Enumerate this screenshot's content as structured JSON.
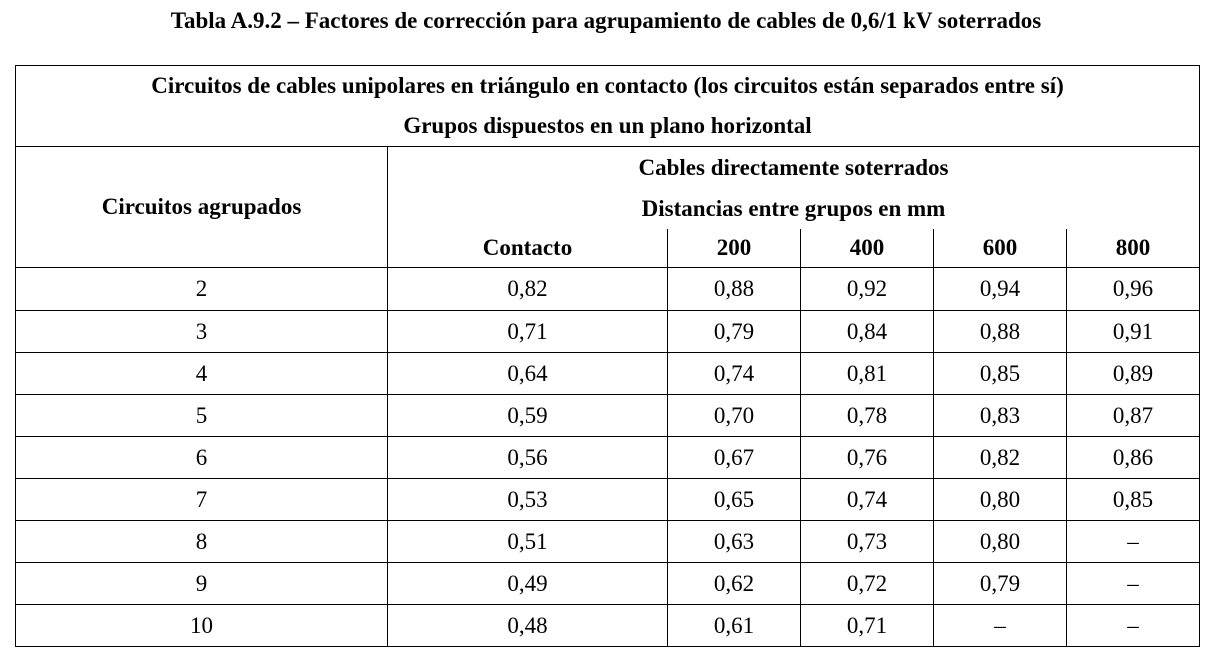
{
  "title": "Tabla A.9.2 – Factores de corrección para agrupamiento de cables de 0,6/1 kV soterrados",
  "header": {
    "line1": "Circuitos de cables unipolares en triángulo en contacto (los circuitos están separados entre sí)",
    "line2": "Grupos dispuestos en un plano horizontal",
    "group_line1": "Cables directamente soterrados",
    "group_line2": "Distancias entre grupos en mm",
    "col_circuits": "Circuitos agrupados",
    "columns": [
      "Contacto",
      "200",
      "400",
      "600",
      "800"
    ]
  },
  "rows": [
    {
      "circuits": "2",
      "values": [
        "0,82",
        "0,88",
        "0,92",
        "0,94",
        "0,96"
      ]
    },
    {
      "circuits": "3",
      "values": [
        "0,71",
        "0,79",
        "0,84",
        "0,88",
        "0,91"
      ]
    },
    {
      "circuits": "4",
      "values": [
        "0,64",
        "0,74",
        "0,81",
        "0,85",
        "0,89"
      ]
    },
    {
      "circuits": "5",
      "values": [
        "0,59",
        "0,70",
        "0,78",
        "0,83",
        "0,87"
      ]
    },
    {
      "circuits": "6",
      "values": [
        "0,56",
        "0,67",
        "0,76",
        "0,82",
        "0,86"
      ]
    },
    {
      "circuits": "7",
      "values": [
        "0,53",
        "0,65",
        "0,74",
        "0,80",
        "0,85"
      ]
    },
    {
      "circuits": "8",
      "values": [
        "0,51",
        "0,63",
        "0,73",
        "0,80",
        "–"
      ]
    },
    {
      "circuits": "9",
      "values": [
        "0,49",
        "0,62",
        "0,72",
        "0,79",
        "–"
      ]
    },
    {
      "circuits": "10",
      "values": [
        "0,48",
        "0,61",
        "0,71",
        "–",
        "–"
      ]
    }
  ]
}
